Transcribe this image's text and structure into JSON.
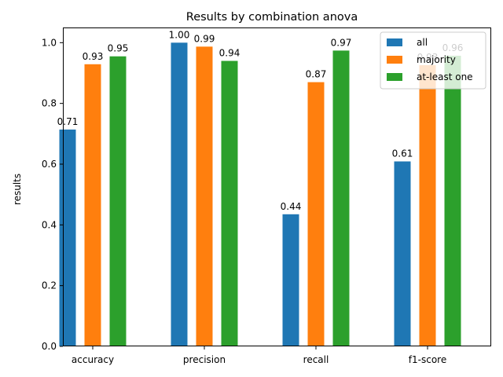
{
  "chart_data": {
    "type": "bar",
    "title": "Results by combination anova",
    "xlabel": "",
    "ylabel": "results",
    "ylim": [
      0,
      1.05
    ],
    "yticks": [
      "0.0",
      "0.2",
      "0.4",
      "0.6",
      "0.8",
      "1.0"
    ],
    "categories": [
      "accuracy",
      "precision",
      "recall",
      "f1-score"
    ],
    "series": [
      {
        "name": "all",
        "color": "#1f77b4",
        "values": [
          0.714,
          1.0,
          0.435,
          0.609
        ],
        "labels": [
          "0.71",
          "1.00",
          "0.44",
          "0.61"
        ]
      },
      {
        "name": "majority",
        "color": "#ff7f0e",
        "values": [
          0.929,
          0.987,
          0.87,
          0.926
        ],
        "labels": [
          "0.93",
          "0.99",
          "0.87",
          "0.93"
        ]
      },
      {
        "name": "at-least one",
        "color": "#2ca02c",
        "values": [
          0.955,
          0.94,
          0.974,
          0.957
        ],
        "labels": [
          "0.95",
          "0.94",
          "0.97",
          "0.96"
        ]
      }
    ],
    "legend_position": "top-right",
    "grid": false
  }
}
